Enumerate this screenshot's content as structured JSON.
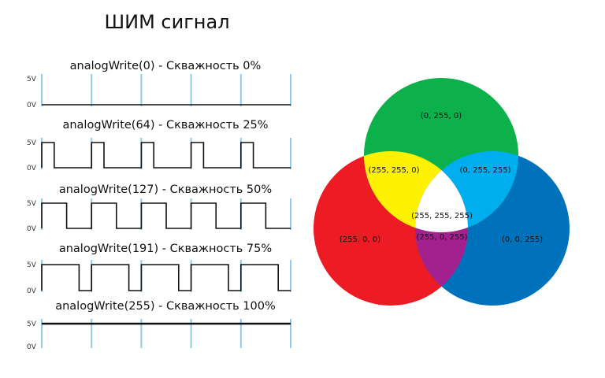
{
  "title": "ШИМ сигнал",
  "pwm": {
    "high_label": "5V",
    "low_label": "0V",
    "cycles": 5,
    "signals": [
      {
        "label": "analogWrite(0) - Скважность 0%",
        "value": 0,
        "duty_percent": 0
      },
      {
        "label": "analogWrite(64) - Скважность 25%",
        "value": 64,
        "duty_percent": 25
      },
      {
        "label": "analogWrite(127) - Скважность 50%",
        "value": 127,
        "duty_percent": 50
      },
      {
        "label": "analogWrite(191) - Скважность 75%",
        "value": 191,
        "duty_percent": 75
      },
      {
        "label": "analogWrite(255) - Скважность 100%",
        "value": 255,
        "duty_percent": 100
      }
    ],
    "colors": {
      "signal": "#111111",
      "period_marker": "#8fcbea"
    }
  },
  "rgb_venn": {
    "regions": {
      "red": {
        "label": "(255, 0, 0)",
        "color": "#ed1c24"
      },
      "green": {
        "label": "(0, 255, 0)",
        "color": "#0db14b"
      },
      "blue": {
        "label": "(0, 0, 255)",
        "color": "#0072bc"
      },
      "yellow": {
        "label": "(255, 255, 0)",
        "color": "#fff200"
      },
      "cyan": {
        "label": "(0, 255, 255)",
        "color": "#00aeef"
      },
      "magenta": {
        "label": "(255, 0, 255)",
        "color": "#a3218e"
      },
      "white": {
        "label": "(255, 255, 255)",
        "color": "#ffffff"
      }
    }
  }
}
